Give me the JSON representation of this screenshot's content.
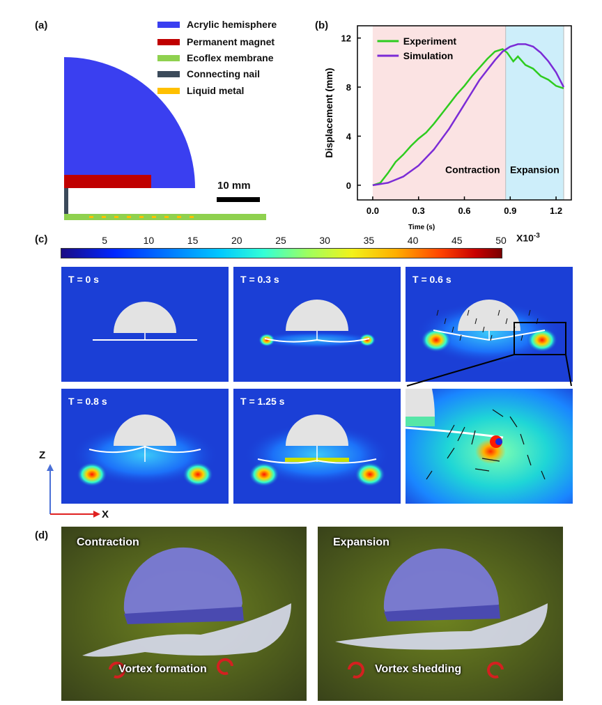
{
  "panel_labels": {
    "a": "(a)",
    "b": "(b)",
    "c": "(c)",
    "d": "(d)"
  },
  "legend": [
    {
      "label": "Acrylic hemisphere",
      "color": "#3a3ff0"
    },
    {
      "label": "Permanent magnet",
      "color": "#c00000"
    },
    {
      "label": "Ecoflex membrane",
      "color": "#8fd14f"
    },
    {
      "label": "Connecting nail",
      "color": "#3b4a5a"
    },
    {
      "label": "Liquid metal",
      "color": "#ffc000"
    }
  ],
  "scale_bar": "10 mm",
  "colorbar": {
    "ticks": [
      "5",
      "10",
      "15",
      "20",
      "25",
      "30",
      "35",
      "40",
      "45",
      "50"
    ],
    "unit": "X10",
    "unit_exp": "-3"
  },
  "axes": {
    "x": "X",
    "z": "Z"
  },
  "sim_panels": [
    {
      "label": "T = 0 s",
      "state": 0
    },
    {
      "label": "T = 0.3 s",
      "state": 1
    },
    {
      "label": "T = 0.6 s",
      "state": 2
    },
    {
      "label": "T = 0.8 s",
      "state": 3
    },
    {
      "label": "T = 1.25 s",
      "state": 4
    }
  ],
  "photos": [
    {
      "title": "Contraction",
      "caption": "Vortex formation"
    },
    {
      "title": "Expansion",
      "caption": "Vortex shedding"
    }
  ],
  "chart_data": {
    "type": "line",
    "title": "",
    "xlabel": "Time (s)",
    "ylabel": "Displacement (mm)",
    "xlim": [
      -0.1,
      1.3
    ],
    "ylim": [
      -1.2,
      13
    ],
    "xticks": [
      0.0,
      0.3,
      0.6,
      0.9,
      1.2
    ],
    "xtick_labels": [
      "0.0",
      "0.3",
      "0.6",
      "0.9",
      "1.2"
    ],
    "yticks": [
      0,
      4,
      8,
      12
    ],
    "ytick_labels": [
      "0",
      "4",
      "8",
      "12"
    ],
    "regions": [
      {
        "label": "Contraction",
        "x0": 0.0,
        "x1": 0.87,
        "color": "#fbe3e3"
      },
      {
        "label": "Expansion",
        "x0": 0.87,
        "x1": 1.25,
        "color": "#cdeefa"
      }
    ],
    "series": [
      {
        "name": "Experiment",
        "color": "#2ecc1f",
        "x": [
          0,
          0.05,
          0.1,
          0.15,
          0.2,
          0.25,
          0.3,
          0.35,
          0.4,
          0.45,
          0.5,
          0.55,
          0.6,
          0.65,
          0.7,
          0.75,
          0.8,
          0.85,
          0.88,
          0.92,
          0.95,
          1.0,
          1.05,
          1.1,
          1.15,
          1.2,
          1.25
        ],
        "y": [
          0,
          0.2,
          1.0,
          1.9,
          2.5,
          3.2,
          3.8,
          4.3,
          5.0,
          5.8,
          6.6,
          7.4,
          8.1,
          8.9,
          9.6,
          10.3,
          10.9,
          11.1,
          10.8,
          10.1,
          10.5,
          9.8,
          9.5,
          8.9,
          8.6,
          8.1,
          7.9
        ]
      },
      {
        "name": "Simulation",
        "color": "#7b2bd6",
        "x": [
          0,
          0.1,
          0.2,
          0.3,
          0.4,
          0.5,
          0.6,
          0.7,
          0.8,
          0.85,
          0.9,
          0.95,
          1.0,
          1.05,
          1.1,
          1.15,
          1.2,
          1.25
        ],
        "y": [
          0,
          0.2,
          0.7,
          1.6,
          2.9,
          4.6,
          6.6,
          8.6,
          10.2,
          10.9,
          11.3,
          11.5,
          11.5,
          11.3,
          10.8,
          10.1,
          9.2,
          8.0
        ]
      }
    ]
  }
}
